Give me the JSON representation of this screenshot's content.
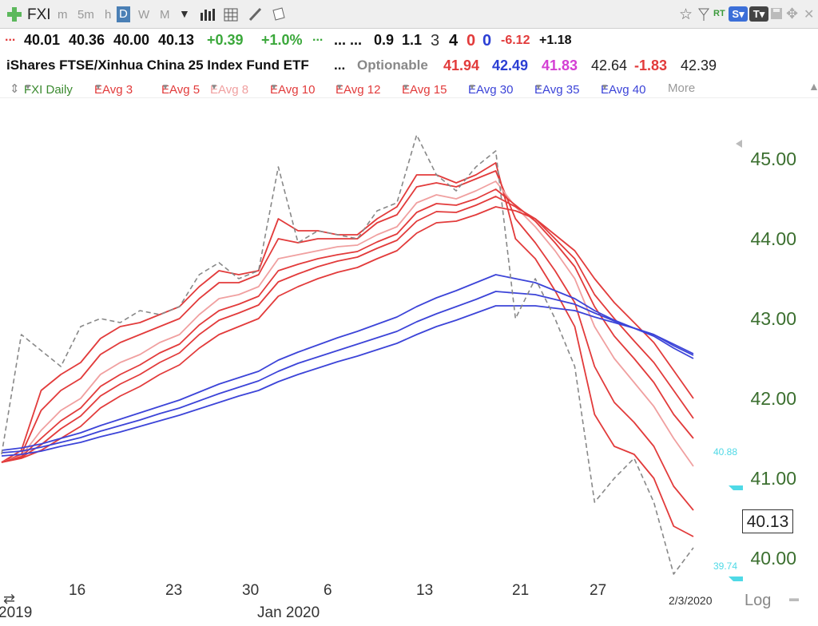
{
  "toolbar": {
    "symbol": "FXI",
    "timeframes": [
      "m",
      "5m",
      "h",
      "D",
      "W",
      "M"
    ],
    "active_timeframe": "D",
    "right_badges": [
      "RT",
      "S",
      "T"
    ]
  },
  "quote_row": {
    "marker": "...",
    "open": "40.01",
    "high": "40.36",
    "low": "40.00",
    "close": "40.13",
    "change": "+0.39",
    "change_pct": "+1.0%",
    "marker2": "...",
    "dots": "... ...",
    "v1": "0.9",
    "v2": "1.1",
    "v3": "3",
    "v4": "4",
    "v5": "0",
    "v6": "0",
    "v7": "-6.12",
    "v8": "+1.18"
  },
  "name_row": {
    "name": "iShares FTSE/Xinhua China 25 Index Fund ETF",
    "dots": "...",
    "optionable": "Optionable",
    "p1": "41.94",
    "p2": "42.49",
    "p3": "41.83",
    "p4": "42.64",
    "p5": "-1.83",
    "p6": "42.39"
  },
  "legend": {
    "items": [
      "FXI Daily",
      "EAvg 3",
      "EAvg 5",
      "EAvg 8",
      "EAvg 10",
      "EAvg 12",
      "EAvg 15",
      "EAvg 30",
      "EAvg 35",
      "EAvg 40"
    ],
    "more": "More"
  },
  "colors": {
    "red": "#e23b3b",
    "pink": "#f0a0a0",
    "blue": "#3c44d8",
    "price_dashed": "#888888",
    "axis_green": "#3b6f2f",
    "cyan": "#4fd9e6"
  },
  "chart_data": {
    "type": "line",
    "ylim": [
      39.6,
      45.6
    ],
    "y_ticks": [
      "45.00",
      "44.00",
      "43.00",
      "42.00",
      "41.00",
      "40.00"
    ],
    "x_tick_labels": [
      "16",
      "23",
      "30",
      "6",
      "13",
      "21",
      "27"
    ],
    "x_sub_labels": [
      "2019",
      "Jan 2020"
    ],
    "last_date": "2/3/2020",
    "last_price": "40.13",
    "cyan_labels": [
      "40.88",
      "39.74"
    ],
    "scale_label": "Log",
    "series": [
      {
        "name": "FXI Daily",
        "style": "dashed",
        "color": "#888888",
        "values": [
          41.3,
          42.8,
          42.6,
          42.4,
          42.9,
          43.0,
          42.95,
          43.1,
          43.05,
          43.15,
          43.55,
          43.7,
          43.5,
          43.6,
          44.9,
          43.95,
          44.1,
          44.05,
          44.0,
          44.35,
          44.45,
          45.3,
          44.8,
          44.6,
          44.9,
          45.1,
          43.0,
          43.5,
          43.0,
          42.4,
          40.7,
          41.0,
          41.25,
          40.7,
          39.8,
          40.13
        ]
      },
      {
        "name": "EAvg 3",
        "color": "#e23b3b",
        "values": [
          41.2,
          41.35,
          42.1,
          42.3,
          42.45,
          42.75,
          42.9,
          42.95,
          43.05,
          43.15,
          43.4,
          43.6,
          43.55,
          43.6,
          44.25,
          44.1,
          44.1,
          44.05,
          44.05,
          44.25,
          44.4,
          44.8,
          44.8,
          44.7,
          44.8,
          44.95,
          44.0,
          43.75,
          43.35,
          42.9,
          41.8,
          41.4,
          41.3,
          41.0,
          40.4,
          40.27
        ]
      },
      {
        "name": "EAvg 5",
        "color": "#e23b3b",
        "values": [
          41.2,
          41.3,
          41.85,
          42.1,
          42.25,
          42.55,
          42.7,
          42.8,
          42.9,
          43.0,
          43.25,
          43.45,
          43.45,
          43.55,
          44.0,
          43.95,
          44.0,
          44.0,
          44.0,
          44.2,
          44.3,
          44.65,
          44.7,
          44.65,
          44.75,
          44.85,
          44.25,
          43.95,
          43.6,
          43.2,
          42.4,
          41.95,
          41.7,
          41.4,
          40.9,
          40.6
        ]
      },
      {
        "name": "EAvg 8",
        "color": "#f0a0a0",
        "values": [
          41.2,
          41.28,
          41.6,
          41.85,
          42.0,
          42.3,
          42.45,
          42.55,
          42.7,
          42.8,
          43.05,
          43.25,
          43.3,
          43.4,
          43.75,
          43.8,
          43.85,
          43.9,
          43.92,
          44.05,
          44.15,
          44.45,
          44.55,
          44.5,
          44.6,
          44.72,
          44.4,
          44.15,
          43.85,
          43.5,
          42.9,
          42.5,
          42.2,
          41.9,
          41.5,
          41.15
        ]
      },
      {
        "name": "EAvg 10",
        "color": "#e23b3b",
        "values": [
          41.2,
          41.27,
          41.5,
          41.72,
          41.88,
          42.15,
          42.3,
          42.42,
          42.57,
          42.68,
          42.92,
          43.1,
          43.18,
          43.28,
          43.6,
          43.68,
          43.75,
          43.8,
          43.84,
          43.96,
          44.06,
          44.33,
          44.44,
          44.42,
          44.5,
          44.62,
          44.42,
          44.22,
          43.95,
          43.65,
          43.15,
          42.78,
          42.5,
          42.2,
          41.8,
          41.5
        ]
      },
      {
        "name": "EAvg 12",
        "color": "#e23b3b",
        "values": [
          41.2,
          41.26,
          41.42,
          41.62,
          41.78,
          42.03,
          42.18,
          42.3,
          42.45,
          42.57,
          42.8,
          42.98,
          43.07,
          43.17,
          43.46,
          43.56,
          43.65,
          43.72,
          43.77,
          43.88,
          43.98,
          44.22,
          44.34,
          44.33,
          44.42,
          44.53,
          44.4,
          44.25,
          44.0,
          43.75,
          43.3,
          43.0,
          42.72,
          42.45,
          42.1,
          41.75
        ]
      },
      {
        "name": "EAvg 15",
        "color": "#e23b3b",
        "values": [
          41.2,
          41.25,
          41.35,
          41.5,
          41.65,
          41.88,
          42.03,
          42.15,
          42.3,
          42.42,
          42.63,
          42.8,
          42.9,
          43.0,
          43.28,
          43.4,
          43.5,
          43.58,
          43.64,
          43.75,
          43.85,
          44.07,
          44.2,
          44.22,
          44.3,
          44.4,
          44.35,
          44.25,
          44.05,
          43.85,
          43.5,
          43.2,
          42.95,
          42.7,
          42.35,
          42.0
        ]
      },
      {
        "name": "EAvg 30",
        "color": "#3c44d8",
        "values": [
          41.35,
          41.38,
          41.43,
          41.5,
          41.57,
          41.66,
          41.74,
          41.82,
          41.9,
          41.98,
          42.08,
          42.18,
          42.26,
          42.34,
          42.48,
          42.58,
          42.67,
          42.76,
          42.84,
          42.93,
          43.02,
          43.15,
          43.26,
          43.35,
          43.45,
          43.55,
          43.5,
          43.45,
          43.35,
          43.25,
          43.1,
          42.98,
          42.88,
          42.78,
          42.63,
          42.5
        ]
      },
      {
        "name": "EAvg 35",
        "color": "#3c44d8",
        "values": [
          41.32,
          41.34,
          41.39,
          41.45,
          41.51,
          41.59,
          41.66,
          41.73,
          41.81,
          41.88,
          41.97,
          42.06,
          42.14,
          42.22,
          42.34,
          42.44,
          42.52,
          42.6,
          42.68,
          42.76,
          42.84,
          42.96,
          43.06,
          43.15,
          43.24,
          43.34,
          43.32,
          43.3,
          43.24,
          43.18,
          43.07,
          42.97,
          42.88,
          42.8,
          42.66,
          42.54
        ]
      },
      {
        "name": "EAvg 40",
        "color": "#3c44d8",
        "values": [
          41.28,
          41.3,
          41.34,
          41.4,
          41.45,
          41.52,
          41.58,
          41.65,
          41.72,
          41.79,
          41.87,
          41.95,
          42.03,
          42.1,
          42.21,
          42.3,
          42.38,
          42.46,
          42.53,
          42.61,
          42.69,
          42.8,
          42.9,
          42.98,
          43.07,
          43.16,
          43.16,
          43.16,
          43.13,
          43.1,
          43.02,
          42.95,
          42.88,
          42.8,
          42.68,
          42.56
        ]
      }
    ]
  }
}
